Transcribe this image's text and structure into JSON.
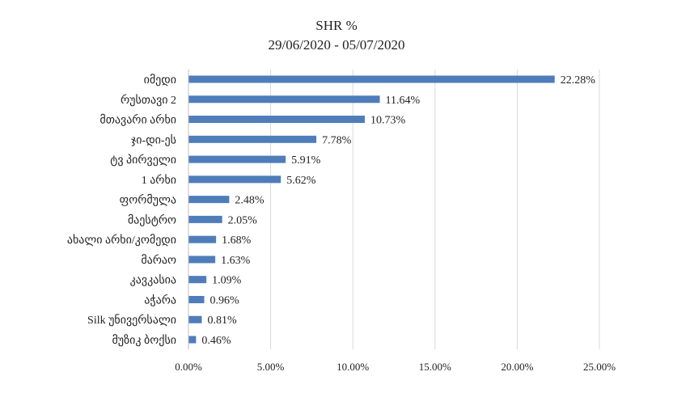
{
  "chart_data": {
    "type": "bar",
    "orientation": "horizontal",
    "title": "SHR %",
    "subtitle": "29/06/2020 - 05/07/2020",
    "categories": [
      "იმედი",
      "რუსთავი 2",
      "მთავარი არხი",
      "ჯი-დი-ეს",
      "ტვ პირველი",
      "1 არხი",
      "ფორმულა",
      "მაესტრო",
      "ახალი არხი/კომედი",
      "მარაო",
      "კავკასია",
      "აჭარა",
      "Silk უნივერსალი",
      "მუზიკ ბოქსი"
    ],
    "values": [
      22.28,
      11.64,
      10.73,
      7.78,
      5.91,
      5.62,
      2.48,
      2.05,
      1.68,
      1.63,
      1.09,
      0.96,
      0.81,
      0.46
    ],
    "value_labels": [
      "22.28%",
      "11.64%",
      "10.73%",
      "7.78%",
      "5.91%",
      "5.62%",
      "2.48%",
      "2.05%",
      "1.68%",
      "1.63%",
      "1.09%",
      "0.96%",
      "0.81%",
      "0.46%"
    ],
    "xlim": [
      0,
      25
    ],
    "xticks": [
      "0.00%",
      "5.00%",
      "10.00%",
      "15.00%",
      "20.00%",
      "25.00%"
    ],
    "grid": "vertical",
    "bar_color": "#4f7dba",
    "grid_color": "#d9d9d9"
  }
}
